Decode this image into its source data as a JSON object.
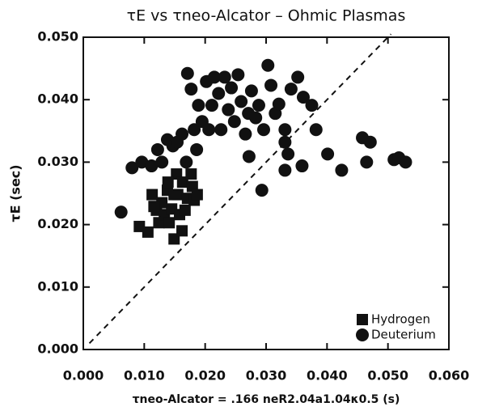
{
  "chart_data": {
    "type": "scatter",
    "title": "τE vs τneo-Alcator – Ohmic Plasmas",
    "x_label": "τneo-Alcator = .166 neR2.04a1.04κ0.5 (s)",
    "y_label": "τE (sec)",
    "xlim": [
      0,
      0.06
    ],
    "ylim": [
      0,
      0.05
    ],
    "xticks": [
      {
        "value": 0,
        "label": "0.000"
      },
      {
        "value": 0.01,
        "label": "0.010"
      },
      {
        "value": 0.02,
        "label": "0.020"
      },
      {
        "value": 0.03,
        "label": "0.030"
      },
      {
        "value": 0.04,
        "label": "0.040"
      },
      {
        "value": 0.05,
        "label": "0.050"
      },
      {
        "value": 0.06,
        "label": "0.060"
      }
    ],
    "yticks": [
      {
        "value": 0,
        "label": "0.000"
      },
      {
        "value": 0.01,
        "label": "0.010"
      },
      {
        "value": 0.02,
        "label": "0.020"
      },
      {
        "value": 0.03,
        "label": "0.030"
      },
      {
        "value": 0.04,
        "label": "0.040"
      },
      {
        "value": 0.05,
        "label": "0.050"
      }
    ],
    "reference_line": {
      "x": [
        0.001,
        0.0505
      ],
      "y": [
        0.001,
        0.0505
      ],
      "dash": true
    },
    "legend": "lower right",
    "series": [
      {
        "name": "Hydrogen",
        "color": "#111111",
        "marker": "square",
        "x": [
          0.0092,
          0.0106,
          0.0113,
          0.012,
          0.0124,
          0.0129,
          0.0133,
          0.0138,
          0.0141,
          0.0145,
          0.0149,
          0.0153,
          0.0155,
          0.0158,
          0.0162,
          0.0163,
          0.0167,
          0.0171,
          0.0177,
          0.0179,
          0.0182,
          0.0187,
          0.0139,
          0.0149,
          0.0116
        ],
        "values": [
          0.0197,
          0.0188,
          0.0248,
          0.0223,
          0.0203,
          0.0235,
          0.0216,
          0.0255,
          0.0203,
          0.0225,
          0.0177,
          0.0281,
          0.0248,
          0.0216,
          0.019,
          0.0268,
          0.0223,
          0.0242,
          0.0281,
          0.0261,
          0.0239,
          0.0248,
          0.0268,
          0.0248,
          0.0229
        ]
      },
      {
        "name": "Deuterium",
        "color": "#111111",
        "marker": "circle",
        "x": [
          0.0062,
          0.008,
          0.0096,
          0.0112,
          0.0122,
          0.0129,
          0.0138,
          0.0147,
          0.0154,
          0.0162,
          0.0171,
          0.0177,
          0.0182,
          0.0189,
          0.0195,
          0.0202,
          0.0206,
          0.0211,
          0.0215,
          0.0222,
          0.0226,
          0.0232,
          0.0238,
          0.0243,
          0.0248,
          0.0254,
          0.0259,
          0.0266,
          0.0271,
          0.0276,
          0.0283,
          0.0288,
          0.0296,
          0.0303,
          0.0308,
          0.0315,
          0.0321,
          0.0331,
          0.0336,
          0.0341,
          0.0352,
          0.0361,
          0.0375,
          0.0382,
          0.0272,
          0.0293,
          0.0331,
          0.0359,
          0.0401,
          0.0424,
          0.0458,
          0.0465,
          0.0471,
          0.051,
          0.0518,
          0.0529,
          0.0331,
          0.0169,
          0.0186
        ],
        "values": [
          0.022,
          0.0291,
          0.03,
          0.0294,
          0.032,
          0.03,
          0.0336,
          0.0326,
          0.0332,
          0.0345,
          0.0442,
          0.0417,
          0.0352,
          0.0391,
          0.0365,
          0.0429,
          0.0352,
          0.0391,
          0.0436,
          0.041,
          0.0352,
          0.0436,
          0.0384,
          0.0419,
          0.0365,
          0.044,
          0.0397,
          0.0345,
          0.0378,
          0.0414,
          0.0371,
          0.0391,
          0.0352,
          0.0455,
          0.0423,
          0.0378,
          0.0393,
          0.0352,
          0.0313,
          0.0417,
          0.0436,
          0.0404,
          0.0391,
          0.0352,
          0.0309,
          0.0255,
          0.0287,
          0.0294,
          0.0313,
          0.0287,
          0.0339,
          0.03,
          0.0332,
          0.0304,
          0.0307,
          0.03,
          0.0332,
          0.03,
          0.032
        ]
      }
    ]
  }
}
